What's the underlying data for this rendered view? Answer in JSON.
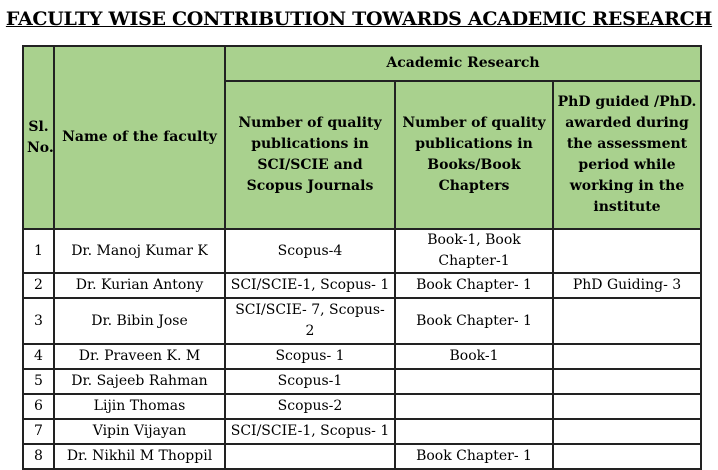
{
  "header": {
    "title": "FACULTY WISE CONTRIBUTION TOWARDS ACADEMIC RESEARCH"
  },
  "table": {
    "header": {
      "sl": "Sl. No.",
      "name": "Name of the faculty",
      "group": "Academic Research",
      "columns": [
        "Number of quality publications in SCI/SCIE and Scopus Journals",
        "Number of quality publications in Books/Book Chapters",
        "PhD guided /PhD. awarded during the assessment period while working in the institute"
      ]
    },
    "rows": [
      [
        "1",
        "Dr. Manoj Kumar K",
        "Scopus-4",
        "Book-1, Book Chapter-1",
        null
      ],
      [
        "2",
        "Dr. Kurian Antony",
        "SCI/SCIE-1, Scopus- 1",
        "Book Chapter- 1",
        "PhD Guiding- 3"
      ],
      [
        "3",
        "Dr. Bibin Jose",
        "SCI/SCIE- 7, Scopus- 2",
        "Book Chapter- 1",
        null
      ],
      [
        "4",
        "Dr. Praveen K. M",
        "Scopus- 1",
        "Book-1",
        null
      ],
      [
        "5",
        "Dr. Sajeeb Rahman",
        "Scopus-1",
        null,
        null
      ],
      [
        "6",
        "Lijin Thomas",
        "Scopus-2",
        null,
        null
      ],
      [
        "7",
        "Vipin Vijayan",
        "SCI/SCIE-1, Scopus- 1",
        null,
        null
      ],
      [
        "8",
        "Dr. Nikhil M Thoppil",
        null,
        "Book Chapter- 1",
        null
      ]
    ]
  }
}
